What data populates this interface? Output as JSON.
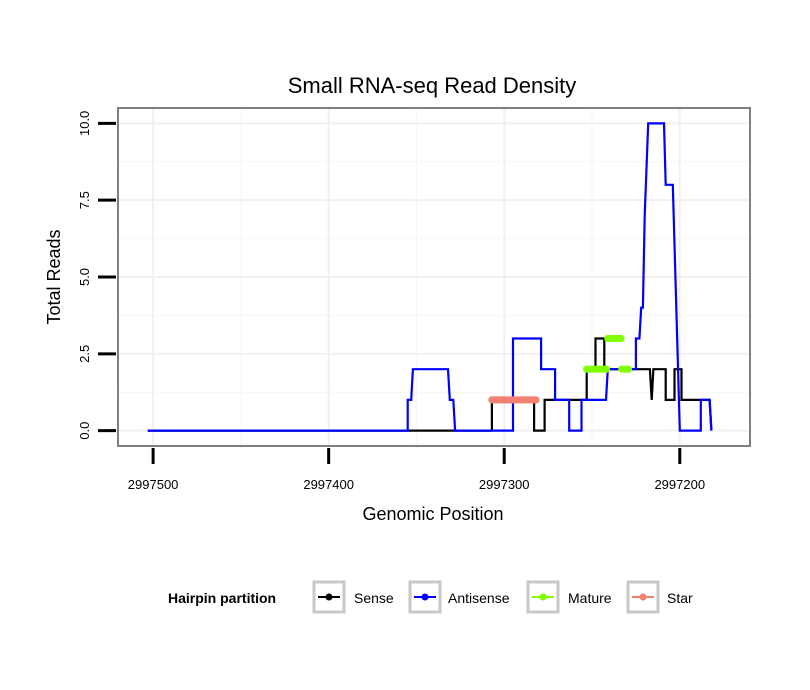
{
  "chart_data": {
    "type": "line",
    "title": "Small RNA-seq Read Density",
    "xlabel": "Genomic Position",
    "ylabel": "Total Reads",
    "xlim": [
      2997520,
      2997160
    ],
    "ylim": [
      -0.5,
      10.5
    ],
    "x_reversed": true,
    "xticks": [
      2997500,
      2997400,
      2997300,
      2997200
    ],
    "xtick_labels": [
      "2997500",
      "2997400",
      "2997300",
      "2997200"
    ],
    "yticks": [
      0,
      2.5,
      5,
      7.5,
      10
    ],
    "ytick_labels": [
      "0.0",
      "2.5",
      "5.0",
      "7.5",
      "10.0"
    ],
    "grid": true,
    "legend": {
      "title": "Hairpin partition",
      "position": "bottom",
      "entries": [
        {
          "name": "Sense",
          "color": "#000000"
        },
        {
          "name": "Antisense",
          "color": "#0000ff"
        },
        {
          "name": "Mature",
          "color": "#7fff00"
        },
        {
          "name": "Star",
          "color": "#f08070"
        }
      ]
    },
    "series": [
      {
        "name": "Sense",
        "color": "#000000",
        "style": "line",
        "points": [
          [
            2997503,
            0
          ],
          [
            2997307,
            0
          ],
          [
            2997307,
            1
          ],
          [
            2997283,
            1
          ],
          [
            2997283,
            0
          ],
          [
            2997277,
            0
          ],
          [
            2997277,
            1
          ],
          [
            2997253,
            1
          ],
          [
            2997253,
            2
          ],
          [
            2997248,
            2
          ],
          [
            2997248,
            3
          ],
          [
            2997243,
            3
          ],
          [
            2997243,
            2
          ],
          [
            2997217,
            2
          ],
          [
            2997216,
            1
          ],
          [
            2997215,
            2
          ],
          [
            2997208,
            2
          ],
          [
            2997208,
            1
          ],
          [
            2997203,
            1
          ],
          [
            2997203,
            2
          ],
          [
            2997199,
            2
          ],
          [
            2997199,
            1
          ],
          [
            2997183,
            1
          ],
          [
            2997182,
            0
          ]
        ]
      },
      {
        "name": "Antisense",
        "color": "#0000ff",
        "style": "line",
        "points": [
          [
            2997503,
            0
          ],
          [
            2997355,
            0
          ],
          [
            2997355,
            1
          ],
          [
            2997353,
            1
          ],
          [
            2997352,
            2
          ],
          [
            2997332,
            2
          ],
          [
            2997331,
            1
          ],
          [
            2997329,
            1
          ],
          [
            2997328,
            0
          ],
          [
            2997307,
            0
          ],
          [
            2997307,
            0
          ],
          [
            2997295,
            0
          ],
          [
            2997295,
            3
          ],
          [
            2997279,
            3
          ],
          [
            2997279,
            2
          ],
          [
            2997271,
            2
          ],
          [
            2997271,
            1
          ],
          [
            2997263,
            1
          ],
          [
            2997263,
            0
          ],
          [
            2997256,
            0
          ],
          [
            2997256,
            1
          ],
          [
            2997242,
            1
          ],
          [
            2997241,
            2
          ],
          [
            2997225,
            2
          ],
          [
            2997225,
            3
          ],
          [
            2997223,
            3
          ],
          [
            2997222,
            4
          ],
          [
            2997221,
            4
          ],
          [
            2997220,
            7
          ],
          [
            2997218,
            10
          ],
          [
            2997209,
            10
          ],
          [
            2997208,
            8
          ],
          [
            2997204,
            8
          ],
          [
            2997200,
            0
          ],
          [
            2997188,
            0
          ],
          [
            2997188,
            1
          ],
          [
            2997183,
            1
          ],
          [
            2997182,
            0
          ]
        ]
      },
      {
        "name": "Mature",
        "color": "#7fff00",
        "style": "markers",
        "segments": [
          [
            2997253,
            2997241,
            2
          ],
          [
            2997241,
            2997233,
            3
          ],
          [
            2997233,
            2997228,
            2
          ]
        ]
      },
      {
        "name": "Star",
        "color": "#f08070",
        "style": "markers",
        "segments": [
          [
            2997307,
            2997281,
            1
          ]
        ]
      }
    ]
  }
}
